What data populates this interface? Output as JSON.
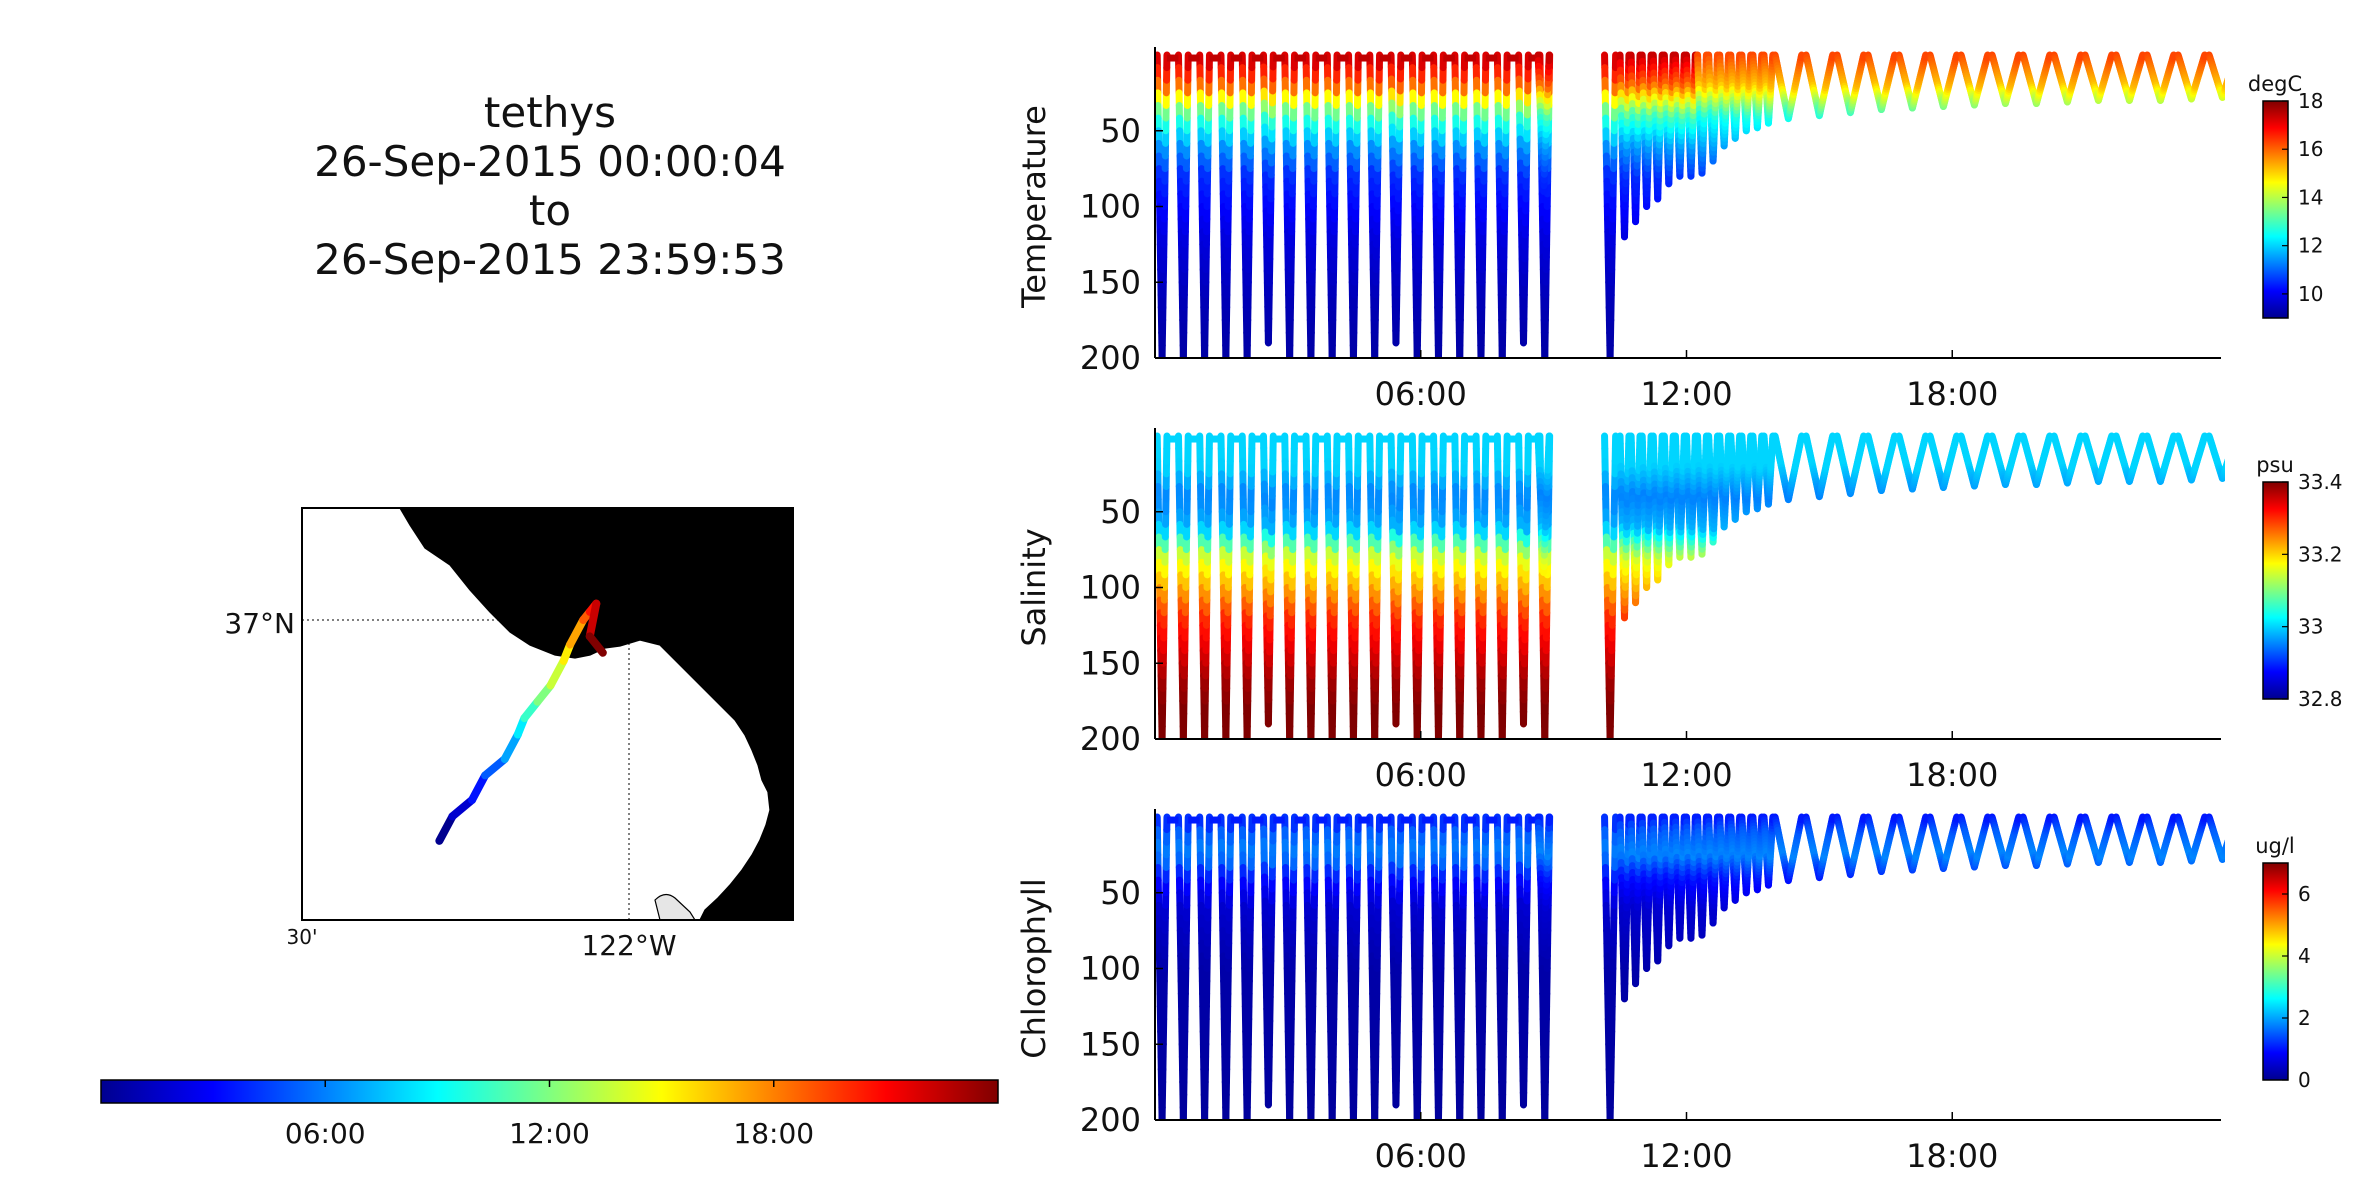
{
  "title": {
    "platform": "tethys",
    "start": "26-Sep-2015 00:00:04",
    "to": "to",
    "end": "26-Sep-2015 23:59:53"
  },
  "colors": {
    "jet": [
      "#00008f",
      "#0000ff",
      "#0080ff",
      "#00ffff",
      "#80ff80",
      "#ffff00",
      "#ff8000",
      "#ff0000",
      "#800000"
    ],
    "land": "#e6e6e6",
    "axis": "#000000"
  },
  "chart_data": [
    {
      "type": "map",
      "lat_label": "37°N",
      "lon_labels": [
        "30'",
        "122°W"
      ],
      "grid": true,
      "track": {
        "lon": [
          -122.29,
          -122.27,
          -122.24,
          -122.22,
          -122.19,
          -122.17,
          -122.16,
          -122.14,
          -122.12,
          -122.1,
          -122.09,
          -122.07,
          -122.06,
          -122.05,
          -122.06,
          -122.04
        ],
        "lat": [
          36.73,
          36.76,
          36.78,
          36.81,
          36.83,
          36.86,
          36.88,
          36.9,
          36.92,
          36.95,
          36.97,
          37.0,
          37.01,
          37.02,
          36.98,
          36.96
        ],
        "color_scale": "time"
      }
    },
    {
      "type": "colorbar",
      "orientation": "horizontal",
      "ticks": [
        "06:00",
        "12:00",
        "18:00"
      ]
    },
    {
      "type": "scatter",
      "ylabel": "Temperature",
      "units": "degC",
      "x_range": [
        "00:00",
        "24:00"
      ],
      "xticks": [
        "06:00",
        "12:00",
        "18:00"
      ],
      "yticks": [
        "50",
        "100",
        "150",
        "200"
      ],
      "ylim": [
        200,
        0
      ],
      "clim": [
        9,
        18
      ],
      "cticks": [
        "18",
        "16",
        "14",
        "12",
        "10"
      ],
      "profile": {
        "depth": [
          0,
          20,
          40,
          60,
          80,
          120,
          160,
          200
        ],
        "value": [
          17.5,
          16.0,
          13.0,
          11.5,
          10.5,
          9.8,
          9.4,
          9.2
        ]
      }
    },
    {
      "type": "scatter",
      "ylabel": "Salinity",
      "units": "psu",
      "x_range": [
        "00:00",
        "24:00"
      ],
      "xticks": [
        "06:00",
        "12:00",
        "18:00"
      ],
      "yticks": [
        "50",
        "100",
        "150",
        "200"
      ],
      "ylim": [
        200,
        0
      ],
      "clim": [
        32.8,
        33.4
      ],
      "cticks": [
        "33.4",
        "33.2",
        "33",
        "32.8"
      ],
      "profile": {
        "depth": [
          0,
          20,
          40,
          60,
          80,
          120,
          160,
          200
        ],
        "value": [
          33.0,
          33.0,
          32.95,
          32.98,
          33.15,
          33.3,
          33.38,
          33.42
        ]
      }
    },
    {
      "type": "scatter",
      "ylabel": "Chlorophyll",
      "units": "ug/l",
      "x_range": [
        "00:00",
        "24:00"
      ],
      "xticks": [
        "06:00",
        "12:00",
        "18:00"
      ],
      "yticks": [
        "50",
        "100",
        "150",
        "200"
      ],
      "ylim": [
        200,
        0
      ],
      "clim": [
        0,
        7
      ],
      "cticks": [
        "6",
        "4",
        "2",
        "0"
      ],
      "profile": {
        "depth": [
          0,
          10,
          25,
          40,
          60,
          100,
          200
        ],
        "value": [
          1.0,
          1.5,
          1.8,
          1.0,
          0.5,
          0.2,
          0.1
        ]
      }
    }
  ]
}
